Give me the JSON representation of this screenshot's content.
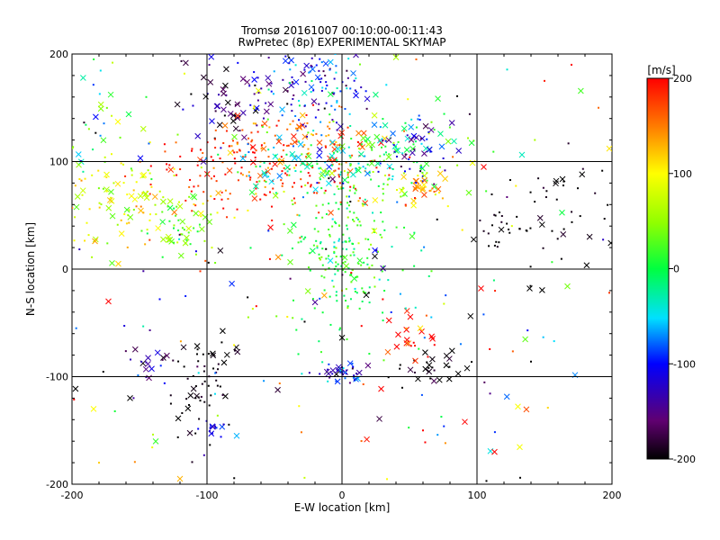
{
  "chart_data": {
    "type": "scatter",
    "title": "Tromsø 20161007 00:10:00-00:11:43",
    "subtitle": "RwPretec (8p) EXPERIMENTAL SKYMAP",
    "xlabel": "E-W location [km]",
    "ylabel": "N-S location [km]",
    "xlim": [
      -200,
      200
    ],
    "ylim": [
      -200,
      200
    ],
    "xticks": [
      -200,
      -100,
      0,
      100,
      200
    ],
    "yticks": [
      -200,
      -100,
      0,
      100,
      200
    ],
    "grid": true,
    "colorbar": {
      "label": "[m/s]",
      "min": -200,
      "max": 200,
      "ticks": [
        200,
        100,
        0,
        -100,
        -200
      ],
      "colormap": "rainbow (black-purple-blue-cyan-green-yellow-orange-red)"
    },
    "marker_types": [
      "dot",
      "x"
    ],
    "clusters": [
      {
        "x": -20,
        "y": 170,
        "sx": 20,
        "sy": 20,
        "n": 130,
        "v": -100,
        "sv": 50,
        "xfrac": 0.25
      },
      {
        "x": -82,
        "y": 160,
        "sx": 20,
        "sy": 18,
        "n": 60,
        "v": -170,
        "sv": 30,
        "xfrac": 0.5
      },
      {
        "x": -60,
        "y": 90,
        "sx": 45,
        "sy": 18,
        "n": 180,
        "v": 180,
        "sv": 30,
        "xfrac": 0.1
      },
      {
        "x": -40,
        "y": 120,
        "sx": 30,
        "sy": 15,
        "n": 80,
        "v": 160,
        "sv": 35,
        "xfrac": 0.3
      },
      {
        "x": -5,
        "y": 100,
        "sx": 40,
        "sy": 15,
        "n": 120,
        "v": -30,
        "sv": 40,
        "xfrac": 0.3
      },
      {
        "x": 0,
        "y": 15,
        "sx": 18,
        "sy": 30,
        "n": 200,
        "v": 10,
        "sv": 25,
        "xfrac": 0.05
      },
      {
        "x": 30,
        "y": 95,
        "sx": 30,
        "sy": 25,
        "n": 110,
        "v": 20,
        "sv": 40,
        "xfrac": 0.2
      },
      {
        "x": 55,
        "y": 115,
        "sx": 12,
        "sy": 12,
        "n": 40,
        "v": -120,
        "sv": 40,
        "xfrac": 0.5
      },
      {
        "x": 60,
        "y": 75,
        "sx": 8,
        "sy": 8,
        "n": 30,
        "v": 130,
        "sv": 30,
        "xfrac": 0.4
      },
      {
        "x": -155,
        "y": 65,
        "sx": 30,
        "sy": 25,
        "n": 120,
        "v": 90,
        "sv": 35,
        "xfrac": 0.3
      },
      {
        "x": -120,
        "y": 40,
        "sx": 15,
        "sy": 20,
        "n": 50,
        "v": 40,
        "sv": 30,
        "xfrac": 0.3
      },
      {
        "x": -185,
        "y": 130,
        "sx": 12,
        "sy": 40,
        "n": 40,
        "v": -20,
        "sv": 80,
        "xfrac": 0.3
      },
      {
        "x": 165,
        "y": 60,
        "sx": 22,
        "sy": 30,
        "n": 40,
        "v": -200,
        "sv": 10,
        "xfrac": 0.25
      },
      {
        "x": 120,
        "y": 32,
        "sx": 10,
        "sy": 10,
        "n": 25,
        "v": -200,
        "sv": 10,
        "xfrac": 0.2
      },
      {
        "x": -140,
        "y": -85,
        "sx": 8,
        "sy": 10,
        "n": 20,
        "v": -130,
        "sv": 40,
        "xfrac": 0.4
      },
      {
        "x": -108,
        "y": -120,
        "sx": 15,
        "sy": 20,
        "n": 40,
        "v": -200,
        "sv": 15,
        "xfrac": 0.3
      },
      {
        "x": -95,
        "y": -150,
        "sx": 5,
        "sy": 5,
        "n": 15,
        "v": -110,
        "sv": 20,
        "xfrac": 0.4
      },
      {
        "x": 0,
        "y": -98,
        "sx": 10,
        "sy": 6,
        "n": 45,
        "v": -110,
        "sv": 40,
        "xfrac": 0.2
      },
      {
        "x": 70,
        "y": -95,
        "sx": 18,
        "sy": 8,
        "n": 30,
        "v": -200,
        "sv": 15,
        "xfrac": 0.5
      },
      {
        "x": 50,
        "y": -65,
        "sx": 10,
        "sy": 12,
        "n": 20,
        "v": 200,
        "sv": 25,
        "xfrac": 0.6
      },
      {
        "x": -95,
        "y": -80,
        "sx": 10,
        "sy": 10,
        "n": 20,
        "v": -200,
        "sv": 20,
        "xfrac": 0.4
      },
      {
        "x": 0,
        "y": 0,
        "sx": 110,
        "sy": 110,
        "n": 200,
        "v": 0,
        "sv": 160,
        "xfrac": 0.2
      }
    ],
    "points": [
      {
        "x": -173,
        "y": -30,
        "v": 200,
        "m": "x"
      },
      {
        "x": 105,
        "y": 95,
        "v": 200,
        "m": "x"
      },
      {
        "x": 103,
        "y": -18,
        "v": 200,
        "m": "x"
      },
      {
        "x": 113,
        "y": -170,
        "v": 200,
        "m": "x"
      },
      {
        "x": 91,
        "y": -142,
        "v": 200,
        "m": "x"
      },
      {
        "x": 167,
        "y": -16,
        "v": 40,
        "m": "x"
      },
      {
        "x": -166,
        "y": 137,
        "v": 100,
        "m": "x"
      },
      {
        "x": -158,
        "y": 144,
        "v": 0,
        "m": "x"
      },
      {
        "x": 198,
        "y": 112,
        "v": 110,
        "m": "x"
      },
      {
        "x": 58,
        "y": -55,
        "v": 110,
        "m": "x"
      },
      {
        "x": -184,
        "y": -130,
        "v": 100,
        "m": "x"
      },
      {
        "x": -120,
        "y": -195,
        "v": 130,
        "m": "x"
      },
      {
        "x": -78,
        "y": -155,
        "v": -60,
        "m": "x"
      },
      {
        "x": -157,
        "y": -120,
        "v": -200,
        "m": "x"
      },
      {
        "x": 132,
        "y": -194,
        "v": -200,
        "m": "dot"
      },
      {
        "x": 107,
        "y": -197,
        "v": -200,
        "m": "dot"
      },
      {
        "x": 139,
        "y": -18,
        "v": -200,
        "m": "x"
      },
      {
        "x": 140,
        "y": -86,
        "v": -200,
        "m": "dot"
      },
      {
        "x": 40,
        "y": 197,
        "v": 60,
        "m": "x"
      },
      {
        "x": 55,
        "y": 195,
        "v": 160,
        "m": "dot"
      },
      {
        "x": -145,
        "y": 160,
        "v": 10,
        "m": "dot"
      },
      {
        "x": -105,
        "y": -2,
        "v": 180,
        "m": "dot"
      },
      {
        "x": -135,
        "y": -28,
        "v": -100,
        "m": "dot"
      },
      {
        "x": 0,
        "y": -20,
        "v": 110,
        "m": "dot"
      },
      {
        "x": 198,
        "y": -22,
        "v": 180,
        "m": "dot"
      },
      {
        "x": -180,
        "y": -180,
        "v": 120,
        "m": "dot"
      },
      {
        "x": 60,
        "y": -150,
        "v": 200,
        "m": "dot"
      },
      {
        "x": 150,
        "y": 175,
        "v": 190,
        "m": "dot"
      },
      {
        "x": 170,
        "y": 190,
        "v": 200,
        "m": "dot"
      },
      {
        "x": 190,
        "y": 150,
        "v": 160,
        "m": "dot"
      }
    ]
  }
}
